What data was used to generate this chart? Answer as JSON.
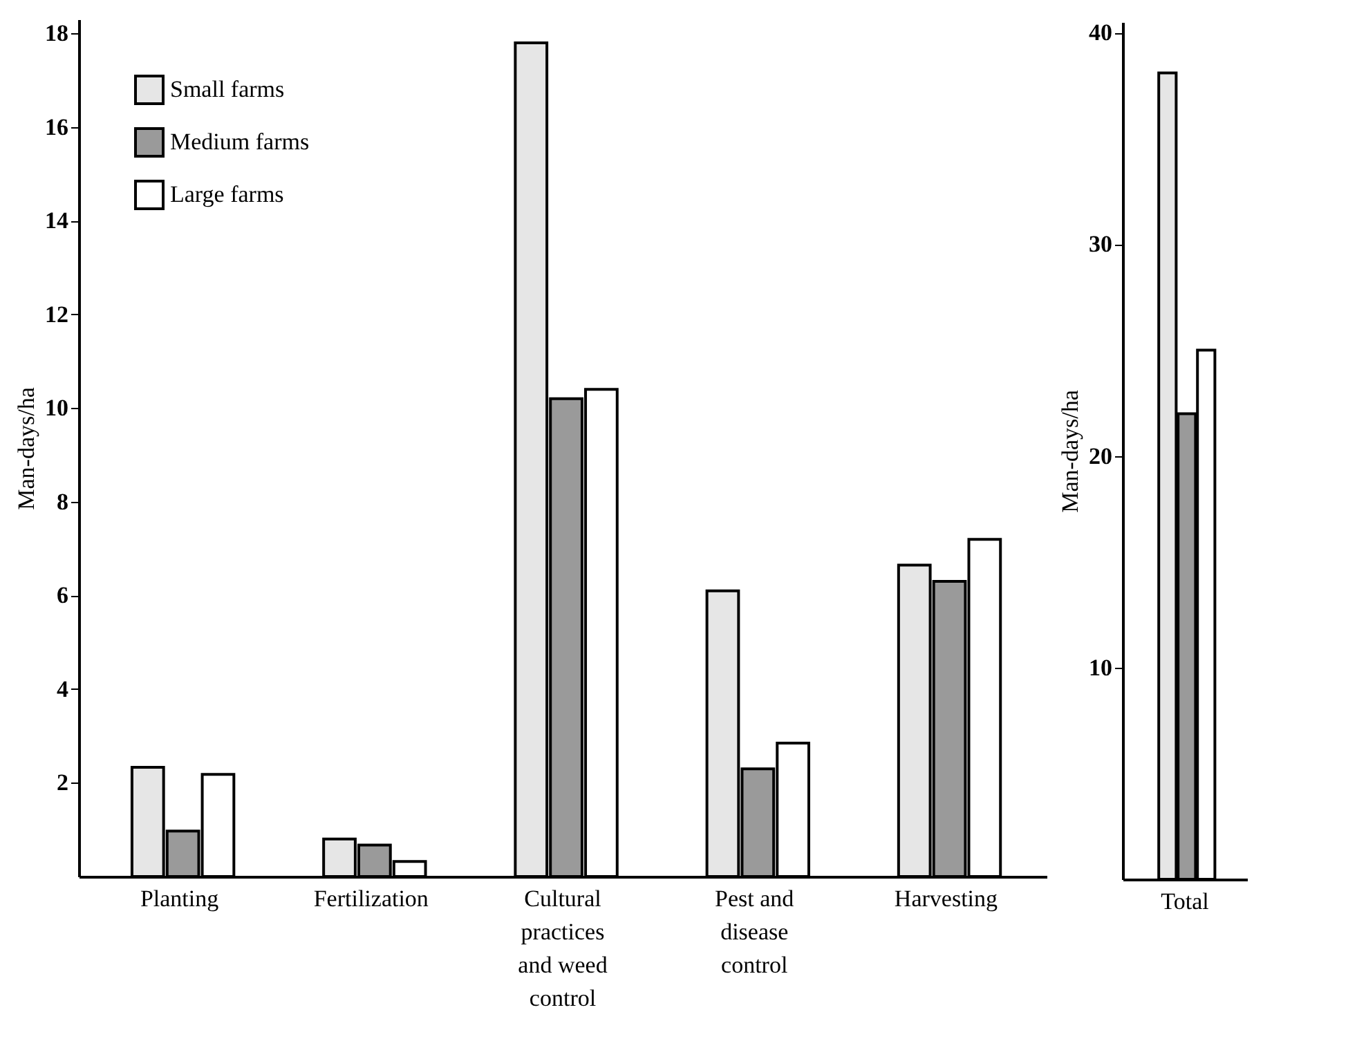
{
  "chart_data": [
    {
      "type": "bar",
      "ylabel": "Man-days/ha",
      "categories": [
        "Planting",
        "Fertilization",
        "Cultural practices and weed control",
        "Pest and disease control",
        "Harvesting"
      ],
      "series": [
        {
          "name": "Small farms",
          "color": "#e6e6e6",
          "values": [
            2.33,
            0.8,
            17.8,
            6.1,
            6.65
          ]
        },
        {
          "name": "Medium farms",
          "color": "#9a9a9a",
          "values": [
            0.97,
            0.67,
            10.2,
            2.3,
            6.3
          ]
        },
        {
          "name": "Large farms",
          "color": "#ffffff",
          "values": [
            2.18,
            0.32,
            10.4,
            2.85,
            7.2
          ]
        }
      ],
      "ylim": [
        0,
        18.3
      ],
      "yticks": [
        2,
        4,
        6,
        8,
        10,
        12,
        14,
        16,
        18
      ],
      "grid": false,
      "legend": "top left"
    },
    {
      "type": "bar",
      "ylabel": "Man-days/ha",
      "categories": [
        "Total"
      ],
      "series": [
        {
          "color": "#e6e6e6",
          "values": [
            38.1
          ]
        },
        {
          "color": "#9a9a9a",
          "values": [
            22
          ]
        },
        {
          "color": "#ffffff",
          "values": [
            25
          ]
        }
      ],
      "ylim": [
        0,
        40.5
      ],
      "yticks": [
        10,
        20,
        30,
        40
      ],
      "grid": false
    }
  ]
}
